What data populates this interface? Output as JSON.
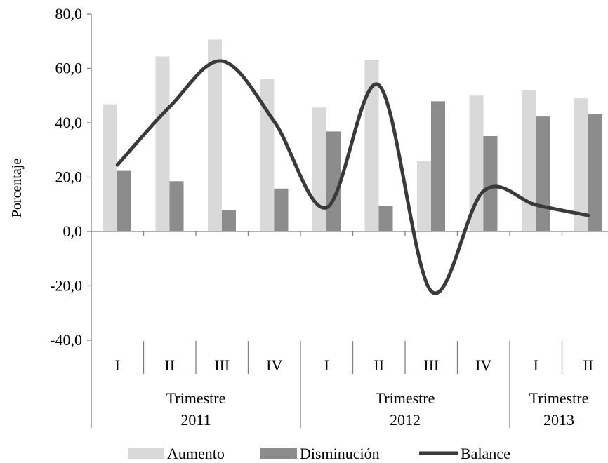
{
  "chart_data": {
    "type": "bar",
    "ylabel": "Porcentaje",
    "ylim": [
      -40,
      80
    ],
    "yticks": [
      "80,0",
      "60,0",
      "40,0",
      "20,0",
      "0,0",
      "-20,0",
      "-40,0"
    ],
    "yticks_values": [
      80,
      60,
      40,
      20,
      0,
      -20,
      -40
    ],
    "categories": [
      "I",
      "II",
      "III",
      "IV",
      "I",
      "II",
      "III",
      "IV",
      "I",
      "II"
    ],
    "groups": [
      {
        "line1": "Trimestre",
        "line2": "2011",
        "count": 4
      },
      {
        "line1": "Trimestre",
        "line2": "2012",
        "count": 4
      },
      {
        "line1": "Trimestre",
        "line2": "2013",
        "count": 2
      }
    ],
    "series": [
      {
        "name": "Aumento",
        "type": "bar",
        "color": "#d9d9d9",
        "values": [
          46.8,
          64.4,
          70.6,
          56.2,
          45.6,
          63.2,
          25.9,
          50.0,
          52.1,
          49.0
        ]
      },
      {
        "name": "Disminución",
        "type": "bar",
        "color": "#8c8c8c",
        "values": [
          22.3,
          18.5,
          7.9,
          15.8,
          36.8,
          9.4,
          47.9,
          35.1,
          42.3,
          43.1
        ]
      },
      {
        "name": "Balance",
        "type": "line",
        "smooth": true,
        "color": "#3a3a3a",
        "values": [
          24.5,
          45.9,
          62.7,
          40.4,
          8.8,
          53.8,
          -22.0,
          14.9,
          9.8,
          5.9
        ]
      }
    ],
    "legend_position": "bottom",
    "grid": false
  }
}
